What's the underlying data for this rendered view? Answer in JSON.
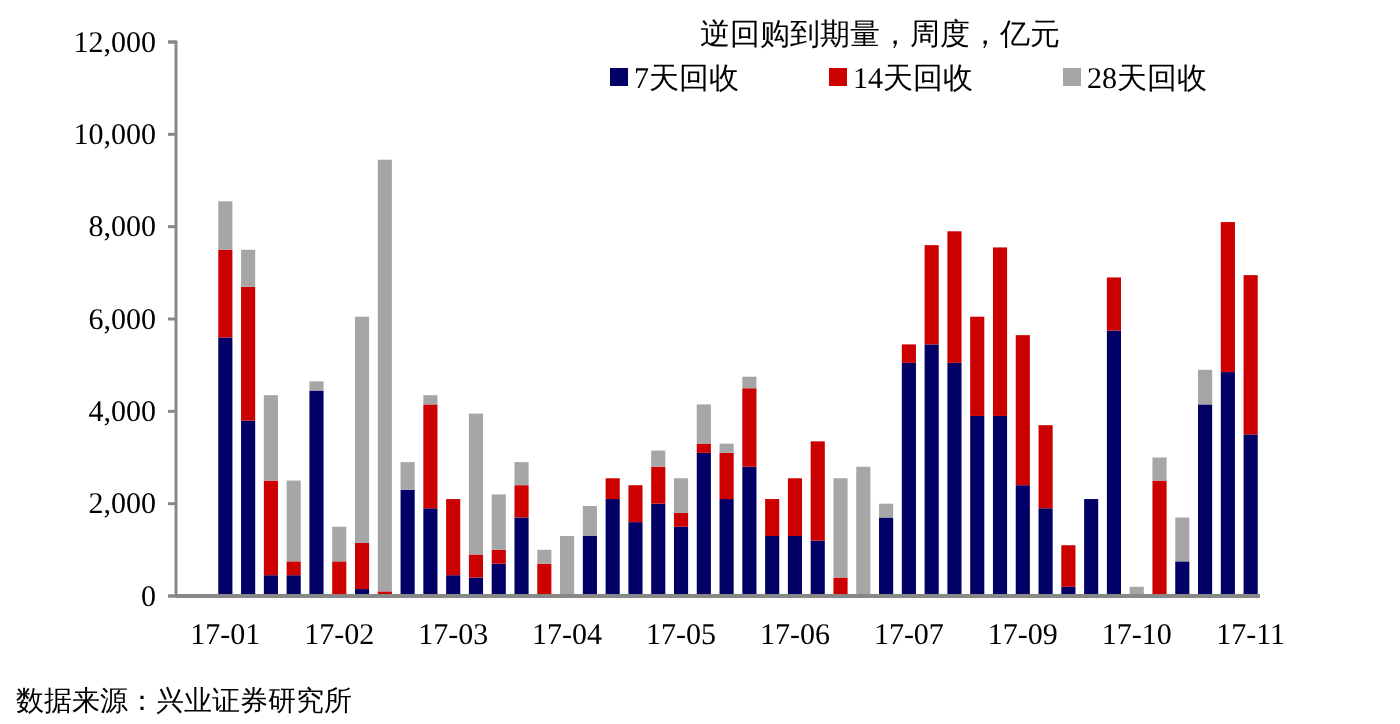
{
  "chart_data": {
    "type": "bar",
    "stacked": true,
    "title": "逆回购到期量，周度，亿元",
    "categories": [
      "17-01",
      null,
      null,
      null,
      null,
      "17-02",
      null,
      null,
      null,
      null,
      "17-03",
      null,
      null,
      null,
      null,
      "17-04",
      null,
      null,
      null,
      null,
      "17-05",
      null,
      null,
      null,
      null,
      "17-06",
      null,
      null,
      null,
      null,
      "17-07",
      null,
      null,
      null,
      null,
      "17-09",
      null,
      null,
      null,
      null,
      "17-10",
      null,
      null,
      null,
      null,
      "17-11"
    ],
    "series": [
      {
        "name": "7天回收",
        "color": "#000066",
        "values": [
          5600,
          3800,
          450,
          450,
          4450,
          0,
          150,
          0,
          2300,
          1900,
          450,
          400,
          700,
          1700,
          0,
          0,
          1300,
          2100,
          1600,
          2000,
          1500,
          3100,
          2100,
          2800,
          1300,
          1300,
          1200,
          0,
          0,
          1700,
          5050,
          5450,
          5050,
          3900,
          3900,
          2400,
          1900,
          200,
          2100,
          5750,
          0,
          0,
          750,
          4150,
          4850,
          3500
        ]
      },
      {
        "name": "14天回收",
        "color": "#cc0000",
        "values": [
          1900,
          2900,
          2050,
          300,
          0,
          750,
          1000,
          100,
          0,
          2250,
          1650,
          500,
          300,
          700,
          700,
          0,
          0,
          450,
          800,
          800,
          300,
          200,
          1000,
          1700,
          800,
          1250,
          2150,
          400,
          0,
          0,
          400,
          2150,
          2850,
          2150,
          3650,
          3250,
          1800,
          900,
          0,
          1150,
          0,
          2500,
          0,
          0,
          3250,
          3450
        ]
      },
      {
        "name": "28天回收",
        "color": "#a6a6a6",
        "values": [
          1050,
          800,
          1850,
          1750,
          200,
          750,
          4900,
          9350,
          600,
          200,
          0,
          3050,
          1200,
          500,
          300,
          1300,
          650,
          0,
          0,
          350,
          750,
          850,
          200,
          250,
          0,
          0,
          0,
          2150,
          2800,
          300,
          0,
          0,
          0,
          0,
          0,
          0,
          0,
          0,
          0,
          0,
          200,
          500,
          950,
          750,
          0,
          0
        ]
      }
    ],
    "ylim": [
      0,
      12000
    ],
    "yticks": [
      {
        "value": 0,
        "label": "0"
      },
      {
        "value": 2000,
        "label": "2,000"
      },
      {
        "value": 4000,
        "label": "4,000"
      },
      {
        "value": 6000,
        "label": "6,000"
      },
      {
        "value": 8000,
        "label": "8,000"
      },
      {
        "value": 10000,
        "label": "10,000"
      },
      {
        "value": 12000,
        "label": "12,000"
      }
    ],
    "legend": "top",
    "annotations": [
      "数据来源：兴业证券研究所"
    ]
  }
}
